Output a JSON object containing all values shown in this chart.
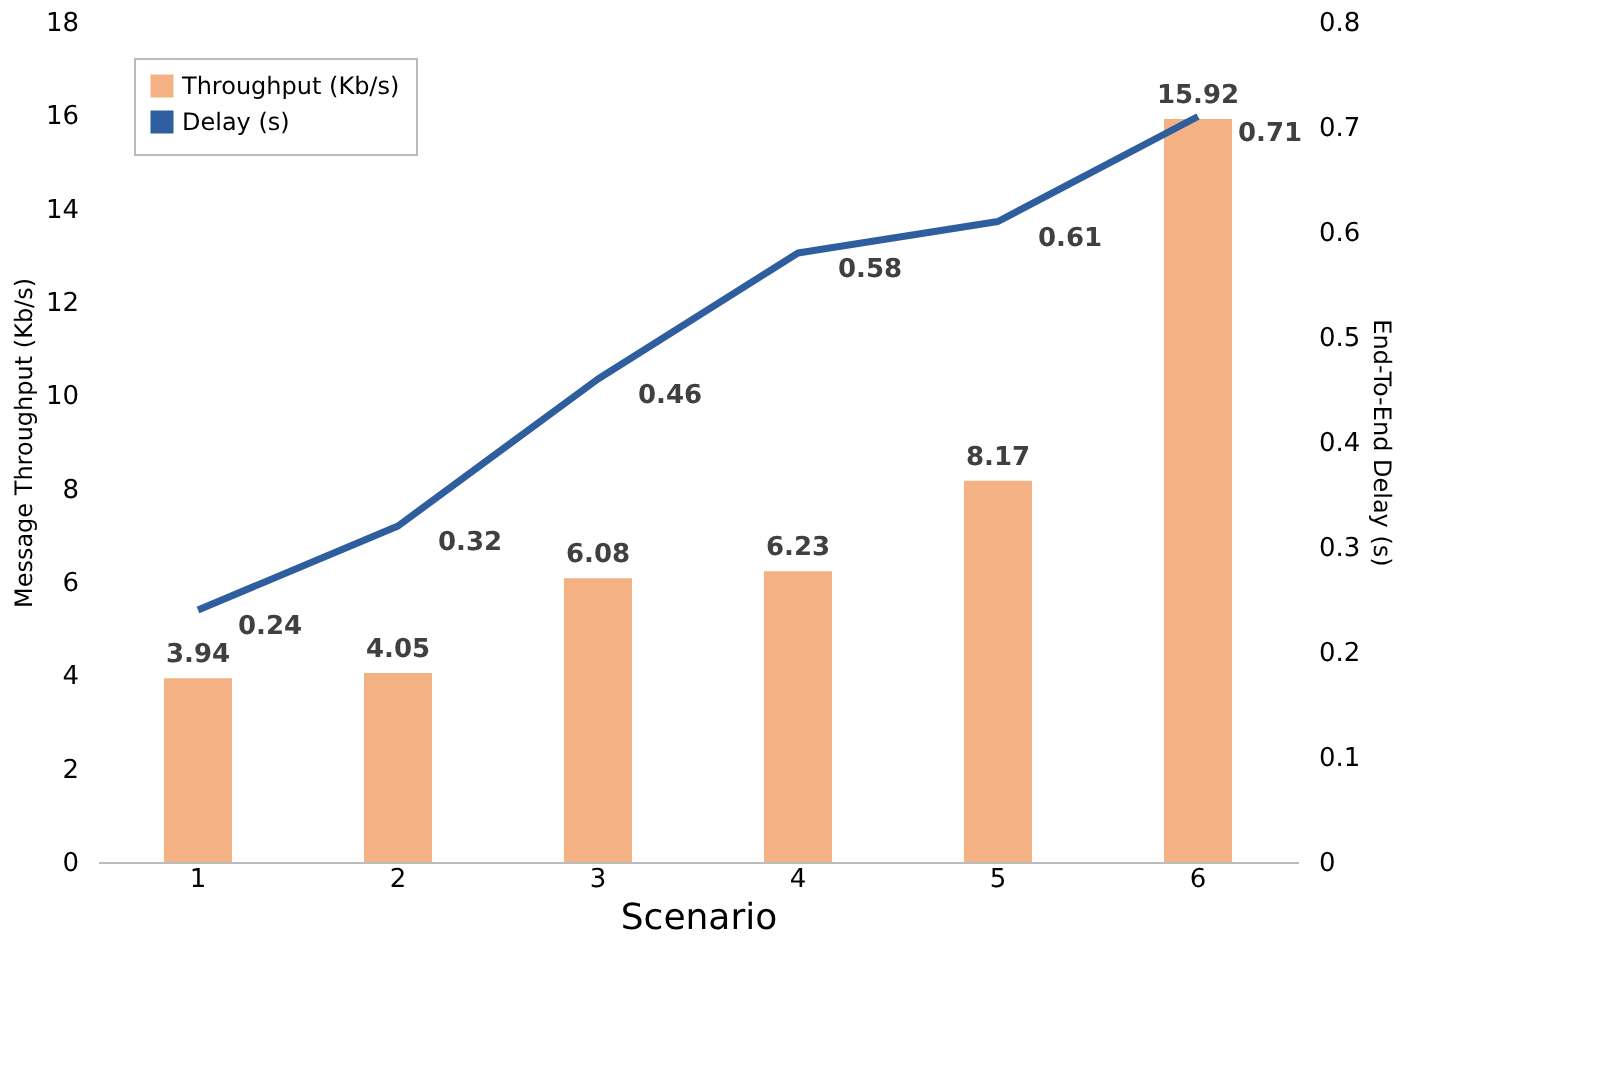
{
  "chart_data": {
    "type": "bar",
    "categories": [
      "1",
      "2",
      "3",
      "4",
      "5",
      "6"
    ],
    "series": [
      {
        "name": "Throughput (Kb/s)",
        "color": "#f4b183",
        "values": [
          3.94,
          4.05,
          6.08,
          6.23,
          8.17,
          15.92
        ]
      },
      {
        "name": "Delay (s)",
        "type": "line",
        "axis": "y2",
        "color": "#2e5e9e",
        "values": [
          0.24,
          0.32,
          0.46,
          0.58,
          0.61,
          0.71
        ]
      }
    ],
    "xlabel": "Scenario",
    "ylabel": "Message Throughput (Kb/s)",
    "y2label": "End-To-End Delay (s)",
    "ylim": [
      0,
      18
    ],
    "yticks": [
      0,
      2,
      4,
      6,
      8,
      10,
      12,
      14,
      16,
      18
    ],
    "y2lim": [
      0,
      0.8
    ],
    "y2ticks": [
      0,
      0.1,
      0.2,
      0.3,
      0.4,
      0.5,
      0.6,
      0.7,
      0.8
    ],
    "legend": "top left",
    "data_labels": true,
    "grid": false
  }
}
